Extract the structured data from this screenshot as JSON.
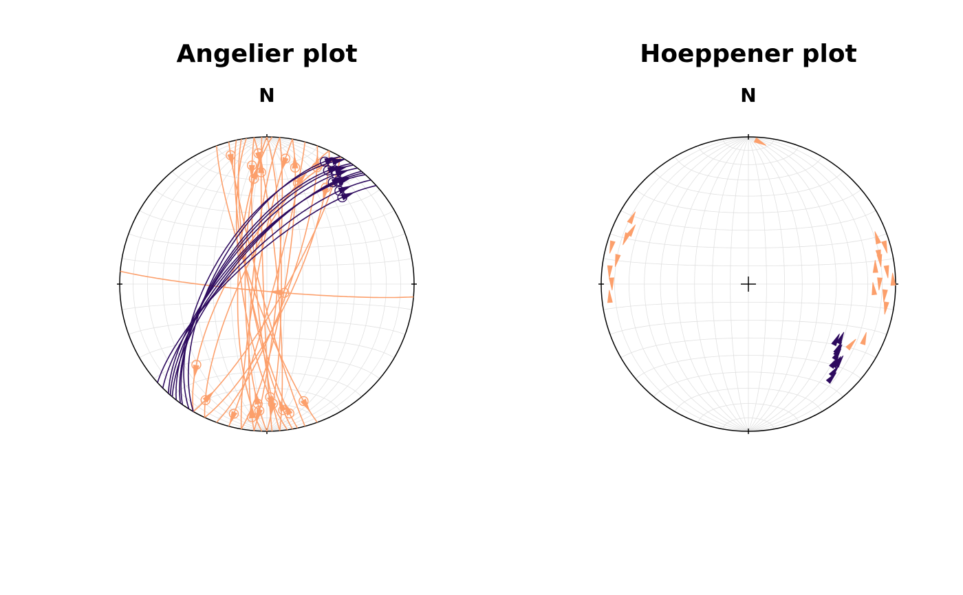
{
  "chart_data": [
    {
      "type": "angelier",
      "title": "Angelier plot",
      "north_label": "N"
    },
    {
      "type": "hoeppener",
      "title": "Hoeppener plot",
      "north_label": "N"
    }
  ],
  "faults": [
    {
      "color": "#fc9f6b",
      "dip_direction": [
        260,
        265,
        270,
        255,
        275,
        268,
        262,
        280,
        258,
        272,
        250,
        95,
        100,
        105,
        110,
        90,
        115,
        120,
        85,
        300,
        295,
        185
      ],
      "dip": [
        80,
        84,
        78,
        86,
        82,
        88,
        76,
        84,
        80,
        74,
        82,
        84,
        80,
        86,
        78,
        82,
        76,
        80,
        84,
        70,
        76,
        86
      ],
      "rake": [
        15,
        160,
        20,
        170,
        10,
        155,
        25,
        165,
        12,
        150,
        18,
        165,
        20,
        170,
        15,
        160,
        25,
        168,
        12,
        30,
        150,
        80
      ],
      "sense": [
        1,
        -1,
        1,
        -1,
        1,
        1,
        -1,
        -1,
        1,
        1,
        -1,
        1,
        -1,
        1,
        -1,
        1,
        1,
        -1,
        1,
        -1,
        1,
        1
      ]
    },
    {
      "color": "#2d0a5e",
      "dip_direction": [
        305,
        310,
        300,
        315,
        308,
        312,
        302,
        318,
        306,
        311
      ],
      "dip": [
        64,
        70,
        62,
        72,
        66,
        68,
        60,
        74,
        65,
        69
      ],
      "rake": [
        165,
        160,
        170,
        158,
        166,
        162,
        172,
        156,
        168,
        163
      ],
      "sense": [
        1,
        1,
        1,
        1,
        1,
        1,
        1,
        1,
        1,
        1
      ]
    }
  ]
}
